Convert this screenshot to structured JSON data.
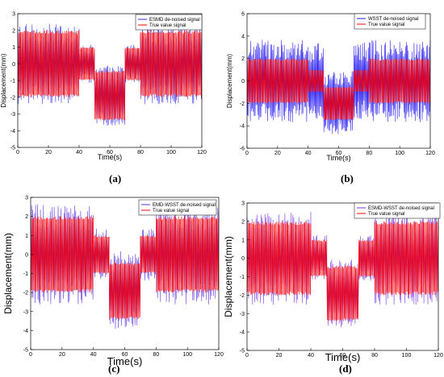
{
  "chart_data": [
    {
      "type": "line",
      "panel_label": "(a)",
      "xlabel": "Time(s)",
      "ylabel": "Displacement(mm)",
      "xlim": [
        0,
        120
      ],
      "ylim": [
        -5,
        3
      ],
      "xticks": [
        "0",
        "20",
        "40",
        "60",
        "80",
        "100",
        "120"
      ],
      "yticks": [
        "3",
        "2",
        "1",
        "0",
        "-1",
        "-2",
        "-3",
        "-4",
        "-5"
      ],
      "legend": "top-right",
      "series": [
        {
          "name": "ESMD de-noised signal",
          "color": "#3b2ef0",
          "segments": [
            {
              "x": [
                0,
                40
              ],
              "amplitude": 2.1,
              "center": 0
            },
            {
              "x": [
                40,
                50
              ],
              "amplitude": 1.0,
              "center": 0
            },
            {
              "x": [
                50,
                70
              ],
              "amplitude": 1.6,
              "center": -1.9
            },
            {
              "x": [
                70,
                80
              ],
              "amplitude": 1.0,
              "center": 0
            },
            {
              "x": [
                80,
                120
              ],
              "amplitude": 2.1,
              "center": 0
            }
          ]
        },
        {
          "name": "True value signal",
          "color": "#ff0000",
          "segments": [
            {
              "x": [
                0,
                40
              ],
              "amplitude": 2.0,
              "center": 0
            },
            {
              "x": [
                40,
                50
              ],
              "amplitude": 1.0,
              "center": 0
            },
            {
              "x": [
                50,
                70
              ],
              "amplitude": 1.5,
              "center": -1.9
            },
            {
              "x": [
                70,
                80
              ],
              "amplitude": 1.0,
              "center": 0
            },
            {
              "x": [
                80,
                120
              ],
              "amplitude": 2.0,
              "center": 0
            }
          ]
        }
      ]
    },
    {
      "type": "line",
      "panel_label": "(b)",
      "xlabel": "Time(s)",
      "ylabel": "Displacement(mm)",
      "xlim": [
        0,
        120
      ],
      "ylim": [
        -6,
        6
      ],
      "xticks": [
        "0",
        "20",
        "40",
        "60",
        "80",
        "100",
        "120"
      ],
      "yticks": [
        "6",
        "4",
        "2",
        "0",
        "-2",
        "-4",
        "-6"
      ],
      "legend": "top-right",
      "series": [
        {
          "name": "WSST de-noised signal",
          "color": "#2a1ef5",
          "segments": [
            {
              "x": [
                0,
                40
              ],
              "amplitude": 3.2,
              "center": 0
            },
            {
              "x": [
                40,
                50
              ],
              "amplitude": 3.0,
              "center": 0
            },
            {
              "x": [
                50,
                70
              ],
              "amplitude": 2.5,
              "center": -2.0
            },
            {
              "x": [
                70,
                80
              ],
              "amplitude": 3.0,
              "center": 0
            },
            {
              "x": [
                80,
                120
              ],
              "amplitude": 3.2,
              "center": 0
            }
          ]
        },
        {
          "name": "True value signal",
          "color": "#ff0000",
          "segments": [
            {
              "x": [
                0,
                40
              ],
              "amplitude": 2.0,
              "center": 0
            },
            {
              "x": [
                40,
                50
              ],
              "amplitude": 1.0,
              "center": 0
            },
            {
              "x": [
                50,
                70
              ],
              "amplitude": 1.5,
              "center": -2.0
            },
            {
              "x": [
                70,
                80
              ],
              "amplitude": 1.0,
              "center": 0
            },
            {
              "x": [
                80,
                120
              ],
              "amplitude": 2.0,
              "center": 0
            }
          ]
        }
      ]
    },
    {
      "type": "line",
      "panel_label": "(c)",
      "xlabel": "Time(s)",
      "ylabel": "Displacement(mm)",
      "xlim": [
        0,
        120
      ],
      "ylim": [
        -5,
        3
      ],
      "xticks": [
        "0",
        "20",
        "40",
        "60",
        "80",
        "100",
        "120"
      ],
      "yticks": [
        "3",
        "2",
        "1",
        "0",
        "-1",
        "-2",
        "-3",
        "-4",
        "-5"
      ],
      "legend": "top-right",
      "series": [
        {
          "name": "EMD-WSST de-noised signal",
          "color": "#5c2ee0",
          "segments": [
            {
              "x": [
                0,
                40
              ],
              "amplitude": 2.3,
              "center": 0
            },
            {
              "x": [
                40,
                50
              ],
              "amplitude": 1.2,
              "center": 0
            },
            {
              "x": [
                50,
                70
              ],
              "amplitude": 1.8,
              "center": -1.9
            },
            {
              "x": [
                70,
                80
              ],
              "amplitude": 1.2,
              "center": 0
            },
            {
              "x": [
                80,
                120
              ],
              "amplitude": 2.3,
              "center": 0
            }
          ]
        },
        {
          "name": "True value signal",
          "color": "#ff0000",
          "segments": [
            {
              "x": [
                0,
                40
              ],
              "amplitude": 2.0,
              "center": 0
            },
            {
              "x": [
                40,
                50
              ],
              "amplitude": 1.0,
              "center": 0
            },
            {
              "x": [
                50,
                70
              ],
              "amplitude": 1.5,
              "center": -1.9
            },
            {
              "x": [
                70,
                80
              ],
              "amplitude": 1.0,
              "center": 0
            },
            {
              "x": [
                80,
                120
              ],
              "amplitude": 2.0,
              "center": 0
            }
          ]
        }
      ]
    },
    {
      "type": "line",
      "panel_label": "(d)",
      "xlabel": "Time(s)",
      "ylabel": "Displacement(mm)",
      "xlim": [
        0,
        120
      ],
      "ylim": [
        -5,
        3
      ],
      "xticks": [
        "0",
        "20",
        "40",
        "60",
        "80",
        "100",
        "120"
      ],
      "yticks": [
        "3",
        "2",
        "1",
        "0",
        "-1",
        "-2",
        "-3",
        "-4",
        "-5"
      ],
      "legend": "top-right",
      "series": [
        {
          "name": "ESMD-WSST de-noised signal",
          "color": "#7a35e0",
          "segments": [
            {
              "x": [
                0,
                40
              ],
              "amplitude": 2.2,
              "center": 0
            },
            {
              "x": [
                40,
                50
              ],
              "amplitude": 1.1,
              "center": 0
            },
            {
              "x": [
                50,
                70
              ],
              "amplitude": 1.6,
              "center": -1.9
            },
            {
              "x": [
                70,
                80
              ],
              "amplitude": 1.1,
              "center": 0
            },
            {
              "x": [
                80,
                120
              ],
              "amplitude": 2.2,
              "center": 0
            }
          ]
        },
        {
          "name": "True value signal",
          "color": "#ff0000",
          "segments": [
            {
              "x": [
                0,
                40
              ],
              "amplitude": 2.0,
              "center": 0
            },
            {
              "x": [
                40,
                50
              ],
              "amplitude": 1.0,
              "center": 0
            },
            {
              "x": [
                50,
                70
              ],
              "amplitude": 1.5,
              "center": -1.9
            },
            {
              "x": [
                70,
                80
              ],
              "amplitude": 1.0,
              "center": 0
            },
            {
              "x": [
                80,
                120
              ],
              "amplitude": 2.0,
              "center": 0
            }
          ]
        }
      ]
    }
  ]
}
